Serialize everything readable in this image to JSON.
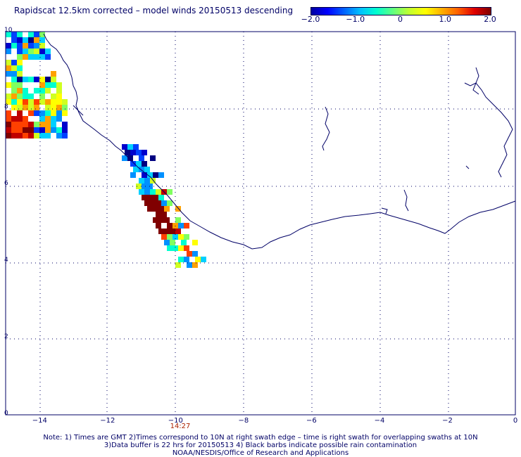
{
  "title": "Rapidscat 12.5km corrected – model winds 20150513 descending",
  "colorbar": {
    "labels": [
      {
        "text": "−2.0",
        "value": -2.0
      },
      {
        "text": "−1.0",
        "value": -1.0
      },
      {
        "text": "0",
        "value": 0
      },
      {
        "text": "1.0",
        "value": 1.0
      },
      {
        "text": "2.0",
        "value": 2.0
      }
    ],
    "range": [
      -2.0,
      2.0
    ],
    "colors": [
      "#0000a0",
      "#0000ff",
      "#0060ff",
      "#00c0ff",
      "#00ffd0",
      "#60ff80",
      "#c0ff30",
      "#ffff00",
      "#ffb000",
      "#ff6000",
      "#e00000",
      "#800000"
    ]
  },
  "axes": {
    "lat_labels": [
      {
        "text": "10",
        "value": 10
      },
      {
        "text": "8",
        "value": 8
      },
      {
        "text": "6",
        "value": 6
      },
      {
        "text": "4",
        "value": 4
      },
      {
        "text": "2",
        "value": 2
      },
      {
        "text": "0",
        "value": 0
      }
    ],
    "lon_labels": [
      {
        "text": "−14",
        "value": -14
      },
      {
        "text": "−12",
        "value": -12
      },
      {
        "text": "−10",
        "value": -10
      },
      {
        "text": "−8",
        "value": -8
      },
      {
        "text": "−6",
        "value": -6
      },
      {
        "text": "−4",
        "value": -4
      },
      {
        "text": "−2",
        "value": -2
      },
      {
        "text": "0",
        "value": 0
      }
    ],
    "lon_range": [
      -15,
      0
    ],
    "lat_range": [
      0,
      10
    ],
    "grid": "dotted"
  },
  "swath_time": "14:27",
  "notes": {
    "line1": "Note: 1) Times are GMT 2)Times correspond to 10N at right swath edge – time is right swath for overlapping swaths at 10N",
    "line2": "3)Data buffer is 22 hrs for 20150513 4) Black barbs indicate possible rain contamination",
    "line3": "NOAA/NESDIS/Office of Research and Applications"
  },
  "colors": {
    "text": "#000066",
    "coastline": "#000066",
    "time_label": "#aa2200"
  }
}
